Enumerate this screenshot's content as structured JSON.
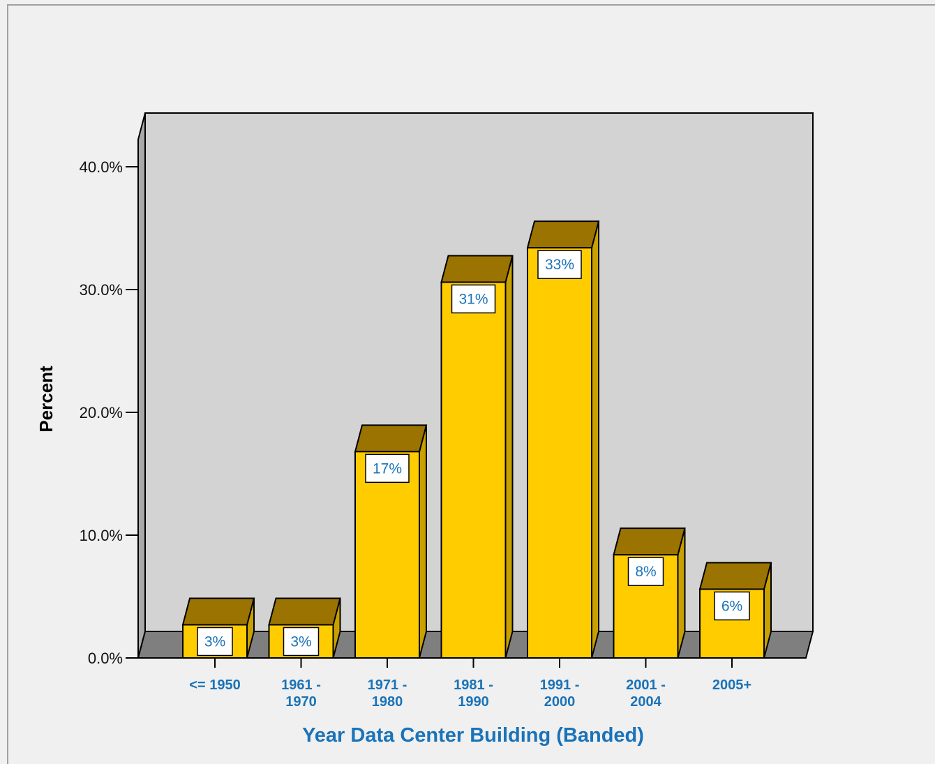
{
  "chart_data": {
    "type": "bar",
    "style": "3d",
    "categories": [
      "<= 1950",
      "1961 - 1970",
      "1971 - 1980",
      "1981 - 1990",
      "1991 - 2000",
      "2001 - 2004",
      "2005+"
    ],
    "category_lines": [
      [
        "<= 1950"
      ],
      [
        "1961 -",
        "1970"
      ],
      [
        "1971 -",
        "1980"
      ],
      [
        "1981 -",
        "1990"
      ],
      [
        "1991 -",
        "2000"
      ],
      [
        "2001 -",
        "2004"
      ],
      [
        "2005+"
      ]
    ],
    "values": [
      2.7,
      2.7,
      16.8,
      30.6,
      33.4,
      8.4,
      5.6
    ],
    "data_labels": [
      "3%",
      "3%",
      "17%",
      "31%",
      "33%",
      "8%",
      "6%"
    ],
    "yticks": [
      "0.0%",
      "10.0%",
      "20.0%",
      "30.0%",
      "40.0%"
    ],
    "ytick_values": [
      0,
      10,
      20,
      30,
      40
    ],
    "ylim": [
      0,
      40
    ],
    "xlabel": "Year Data Center Building (Banded)",
    "ylabel": "Percent",
    "grid": false,
    "colors": {
      "bar_front": "#ffcc00",
      "bar_top": "#9a7300",
      "bar_side": "#c8a000",
      "wall": "#d3d3d3",
      "floor": "#7f7f7f",
      "category_text": "#1a73b8"
    }
  }
}
